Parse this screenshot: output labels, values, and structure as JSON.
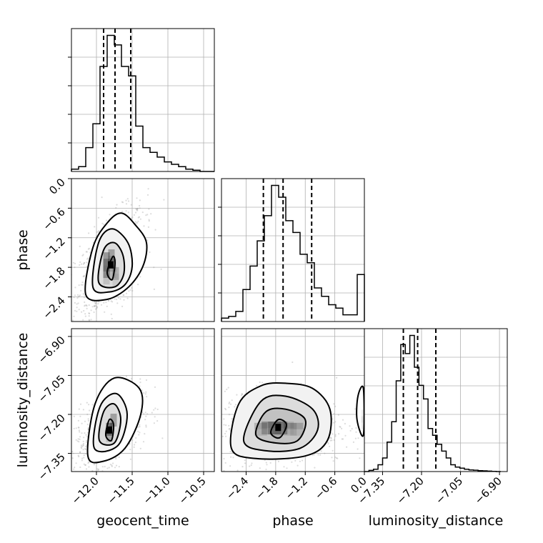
{
  "chart_data": {
    "type": "corner",
    "parameters": [
      {
        "name": "geocent_time",
        "xlabel": "geocent_time",
        "range": [
          -12.35,
          -10.35
        ],
        "ticks": [
          -12.0,
          -11.5,
          -11.0,
          -10.5
        ],
        "tick_labels": [
          "−12.0",
          "−11.5",
          "−11.0",
          "−10.5"
        ],
        "quantiles": [
          -11.9,
          -11.74,
          -11.52
        ],
        "hist_bins": [
          -12.35,
          -12.25,
          -12.15,
          -12.05,
          -11.95,
          -11.85,
          -11.75,
          -11.65,
          -11.55,
          -11.45,
          -11.35,
          -11.25,
          -11.15,
          -11.05,
          -10.95,
          -10.85,
          -10.75,
          -10.65,
          -10.55,
          -10.45,
          -10.35
        ],
        "hist_counts": [
          1,
          2,
          10,
          20,
          44,
          57,
          53,
          44,
          40,
          19,
          10,
          8,
          6,
          4,
          3,
          2,
          1,
          0.5,
          0,
          0
        ]
      },
      {
        "name": "phase",
        "xlabel": "phase",
        "ylabel": "phase",
        "range": [
          -2.9,
          0.0
        ],
        "ticks": [
          -2.4,
          -1.8,
          -1.2,
          -0.6,
          0.0
        ],
        "tick_labels": [
          "−2.4",
          "−1.8",
          "−1.2",
          "−0.6",
          "0.0"
        ],
        "quantiles": [
          -2.05,
          -1.65,
          -1.07
        ],
        "hist_bins": [
          -2.9,
          -2.755,
          -2.61,
          -2.465,
          -2.32,
          -2.175,
          -2.03,
          -1.885,
          -1.74,
          -1.595,
          -1.45,
          -1.305,
          -1.16,
          -1.015,
          -0.87,
          -0.725,
          -0.58,
          -0.435,
          -0.29,
          -0.145,
          0.0
        ],
        "hist_counts": [
          2,
          3,
          6,
          19,
          33,
          48,
          63,
          81,
          74,
          60,
          53,
          40,
          35,
          20,
          15,
          10,
          8,
          4,
          4,
          28
        ]
      },
      {
        "name": "luminosity_distance",
        "xlabel": "luminosity_distance",
        "ylabel": "luminosity_distance",
        "range": [
          -7.42,
          -6.87
        ],
        "ticks": [
          -7.35,
          -7.2,
          -7.05,
          -6.9
        ],
        "tick_labels": [
          "−7.35",
          "−7.20",
          "−7.05",
          "−6.90"
        ],
        "quantiles": [
          -7.27,
          -7.215,
          -7.145
        ],
        "hist_bins": [
          -7.42,
          -7.4025,
          -7.385,
          -7.3675,
          -7.35,
          -7.3325,
          -7.315,
          -7.2975,
          -7.28,
          -7.2625,
          -7.245,
          -7.2275,
          -7.21,
          -7.1925,
          -7.175,
          -7.1575,
          -7.14,
          -7.1225,
          -7.105,
          -7.0875,
          -7.07,
          -7.0525,
          -7.035,
          -7.0175,
          -7.0,
          -6.9825,
          -6.965,
          -6.9475,
          -6.93,
          -6.9125,
          -6.895
        ],
        "hist_counts": [
          0,
          0.5,
          1,
          3,
          6,
          13,
          22,
          40,
          56,
          52,
          60,
          46,
          38,
          32,
          19,
          16,
          12,
          9,
          6,
          3,
          2,
          1.5,
          1,
          0.7,
          0.6,
          0.4,
          0.3,
          0.2,
          0.1,
          0
        ]
      }
    ],
    "contour_panels": [
      {
        "x_param": "geocent_time",
        "y_param": "phase",
        "peak": [
          -11.8,
          -1.75
        ],
        "levels": [
          [
            [
              -11.85,
              -1.9
            ],
            [
              -11.77,
              -1.58
            ],
            [
              -11.74,
              -1.72
            ],
            [
              -11.78,
              -2.05
            ]
          ],
          [
            [
              -11.97,
              -2.1
            ],
            [
              -11.9,
              -1.45
            ],
            [
              -11.75,
              -1.3
            ],
            [
              -11.63,
              -1.55
            ],
            [
              -11.62,
              -1.95
            ],
            [
              -11.75,
              -2.2
            ]
          ],
          [
            [
              -12.05,
              -2.2
            ],
            [
              -11.97,
              -1.3
            ],
            [
              -11.78,
              -1.02
            ],
            [
              -11.56,
              -1.3
            ],
            [
              -11.5,
              -1.78
            ],
            [
              -11.6,
              -2.15
            ],
            [
              -11.82,
              -2.3
            ]
          ],
          [
            [
              -12.15,
              -2.35
            ],
            [
              -12.05,
              -1.4
            ],
            [
              -11.85,
              -0.9
            ],
            [
              -11.65,
              -0.7
            ],
            [
              -11.45,
              -0.95
            ],
            [
              -11.3,
              -1.3
            ],
            [
              -11.35,
              -1.78
            ],
            [
              -11.55,
              -2.2
            ],
            [
              -11.85,
              -2.45
            ]
          ]
        ],
        "blobs": [
          [
            -11.85,
            -1.78,
            0.1,
            0.35,
            0.85
          ],
          [
            -11.8,
            -1.62,
            0.08,
            0.25,
            0.6
          ],
          [
            -11.75,
            -1.95,
            0.07,
            0.22,
            0.45
          ]
        ],
        "scatter_sigma": [
          0.22,
          0.55
        ],
        "scatter_rho": 0.55
      },
      {
        "x_param": "geocent_time",
        "y_param": "luminosity_distance",
        "peak": [
          -11.82,
          -7.26
        ],
        "levels": [
          [
            [
              -11.87,
              -7.28
            ],
            [
              -11.82,
              -7.22
            ],
            [
              -11.76,
              -7.24
            ],
            [
              -11.79,
              -7.3
            ]
          ],
          [
            [
              -11.96,
              -7.3
            ],
            [
              -11.9,
              -7.19
            ],
            [
              -11.75,
              -7.16
            ],
            [
              -11.66,
              -7.22
            ],
            [
              -11.75,
              -7.31
            ]
          ],
          [
            [
              -12.03,
              -7.33
            ],
            [
              -11.95,
              -7.17
            ],
            [
              -11.72,
              -7.12
            ],
            [
              -11.57,
              -7.2
            ],
            [
              -11.7,
              -7.32
            ]
          ],
          [
            [
              -12.12,
              -7.36
            ],
            [
              -12.02,
              -7.16
            ],
            [
              -11.75,
              -7.06
            ],
            [
              -11.4,
              -7.1
            ],
            [
              -11.38,
              -7.2
            ],
            [
              -11.6,
              -7.33
            ],
            [
              -11.9,
              -7.38
            ]
          ]
        ],
        "blobs": [
          [
            -11.83,
            -7.26,
            0.08,
            0.04,
            0.85
          ],
          [
            -11.78,
            -7.22,
            0.07,
            0.035,
            0.55
          ]
        ],
        "scatter_sigma": [
          0.22,
          0.07
        ],
        "scatter_rho": 0.5
      },
      {
        "x_param": "phase",
        "y_param": "luminosity_distance",
        "peak": [
          -1.75,
          -7.25
        ],
        "levels": [
          [
            [
              -1.9,
              -7.27
            ],
            [
              -1.75,
              -7.22
            ],
            [
              -1.58,
              -7.24
            ],
            [
              -1.72,
              -7.29
            ]
          ],
          [
            [
              -2.2,
              -7.28
            ],
            [
              -2.0,
              -7.19
            ],
            [
              -1.6,
              -7.18
            ],
            [
              -1.2,
              -7.22
            ],
            [
              -1.35,
              -7.3
            ],
            [
              -1.8,
              -7.31
            ]
          ],
          [
            [
              -2.45,
              -7.3
            ],
            [
              -2.1,
              -7.15
            ],
            [
              -1.6,
              -7.13
            ],
            [
              -1.05,
              -7.18
            ],
            [
              -0.95,
              -7.26
            ],
            [
              -1.3,
              -7.33
            ],
            [
              -2.0,
              -7.34
            ]
          ],
          [
            [
              -2.7,
              -7.33
            ],
            [
              -2.55,
              -7.16
            ],
            [
              -2.1,
              -7.09
            ],
            [
              -1.6,
              -7.08
            ],
            [
              -1.05,
              -7.1
            ],
            [
              -0.7,
              -7.18
            ],
            [
              -0.75,
              -7.3
            ],
            [
              -1.2,
              -7.36
            ],
            [
              -2.2,
              -7.37
            ]
          ],
          [
            [
              -0.02,
              -7.28
            ],
            [
              -0.15,
              -7.22
            ],
            [
              -0.13,
              -7.13
            ],
            [
              -0.02,
              -7.1
            ]
          ]
        ],
        "blobs": [
          [
            -1.8,
            -7.25,
            0.35,
            0.035,
            0.85
          ],
          [
            -1.45,
            -7.25,
            0.25,
            0.03,
            0.5
          ],
          [
            -2.1,
            -7.25,
            0.2,
            0.03,
            0.35
          ],
          [
            -0.05,
            -7.22,
            0.08,
            0.05,
            0.3
          ]
        ],
        "scatter_sigma": [
          0.6,
          0.07
        ],
        "scatter_rho": 0.0
      }
    ],
    "grid": true,
    "legend": "none"
  }
}
